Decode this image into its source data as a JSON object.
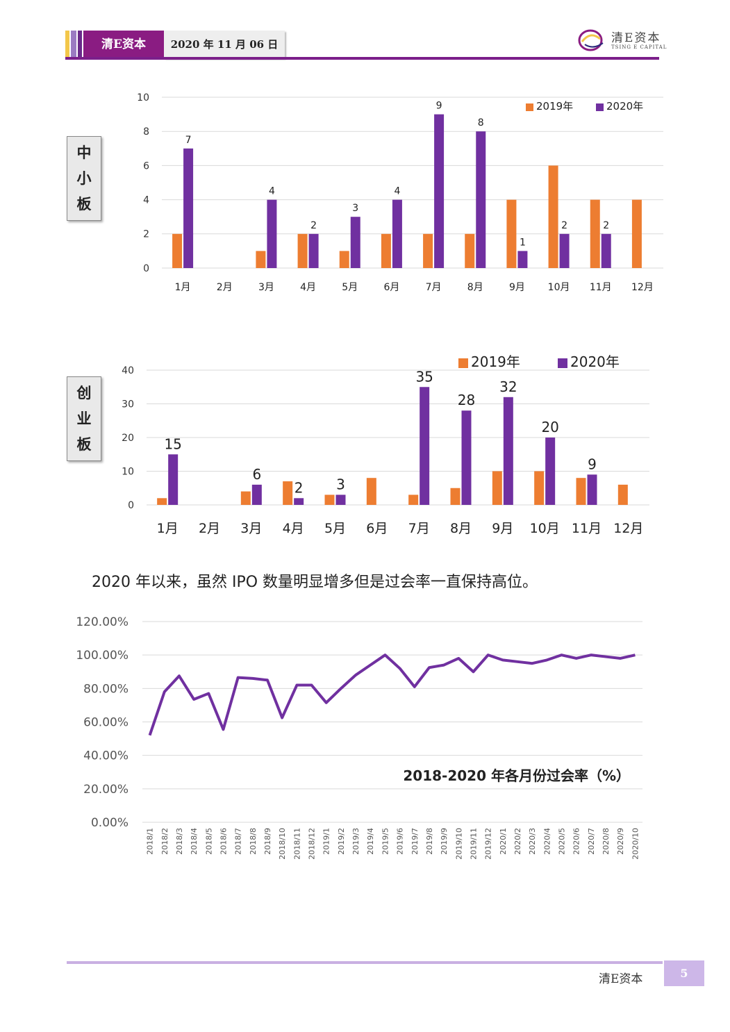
{
  "header": {
    "brand": "清E资本",
    "date": "2020 年 11 月 06 日",
    "logo_cn": "清E资本",
    "logo_en": "TSING E CAPITAL"
  },
  "colors": {
    "y2019": "#ed7d31",
    "y2020": "#7030a0",
    "line": "#7030a0",
    "brand": "#8a1c82"
  },
  "sections": [
    {
      "label_chars": [
        "中",
        "小",
        "板"
      ]
    },
    {
      "label_chars": [
        "创",
        "业",
        "板"
      ]
    }
  ],
  "paragraph": "2020 年以来，虽然 IPO 数量明显增多但是过会率一直保持高位。",
  "chart_data": [
    {
      "type": "bar",
      "categories": [
        "1月",
        "2月",
        "3月",
        "4月",
        "5月",
        "6月",
        "7月",
        "8月",
        "9月",
        "10月",
        "11月",
        "12月"
      ],
      "series": [
        {
          "name": "2019年",
          "values": [
            2,
            0,
            1,
            2,
            1,
            2,
            2,
            2,
            4,
            6,
            4,
            4
          ]
        },
        {
          "name": "2020年",
          "values": [
            7,
            0,
            4,
            2,
            3,
            4,
            9,
            8,
            1,
            2,
            2,
            0
          ],
          "labels": [
            "7",
            "",
            "4",
            "2",
            "3",
            "4",
            "9",
            "8",
            "1",
            "2",
            "2",
            ""
          ]
        }
      ],
      "ylim": [
        0,
        10
      ],
      "yticks": [
        "0",
        "2",
        "4",
        "6",
        "8",
        "10"
      ],
      "legend": "top-right",
      "grid": true
    },
    {
      "type": "bar",
      "categories": [
        "1月",
        "2月",
        "3月",
        "4月",
        "5月",
        "6月",
        "7月",
        "8月",
        "9月",
        "10月",
        "11月",
        "12月"
      ],
      "series": [
        {
          "name": "2019年",
          "values": [
            2,
            0,
            4,
            7,
            3,
            8,
            3,
            5,
            10,
            10,
            8,
            6
          ]
        },
        {
          "name": "2020年",
          "values": [
            15,
            0,
            6,
            2,
            3,
            0,
            35,
            28,
            32,
            20,
            9,
            0
          ],
          "labels": [
            "15",
            "",
            "6",
            "2",
            "3",
            "",
            "35",
            "28",
            "32",
            "20",
            "9",
            ""
          ]
        }
      ],
      "ylim": [
        0,
        40
      ],
      "yticks": [
        "0",
        "10",
        "20",
        "30",
        "40"
      ],
      "legend": "top-right",
      "grid": true
    },
    {
      "type": "line",
      "title": "2018-2020 年各月份过会率（%）",
      "x": [
        "2018/1",
        "2018/2",
        "2018/3",
        "2018/4",
        "2018/5",
        "2018/6",
        "2018/7",
        "2018/8",
        "2018/9",
        "2018/10",
        "2018/11",
        "2018/12",
        "2019/1",
        "2019/2",
        "2019/3",
        "2019/4",
        "2019/5",
        "2019/6",
        "2019/7",
        "2019/8",
        "2019/9",
        "2019/10",
        "2019/11",
        "2019/12",
        "2020/1",
        "2020/2",
        "2020/3",
        "2020/4",
        "2020/5",
        "2020/6",
        "2020/7",
        "2020/8",
        "2020/9",
        "2020/10"
      ],
      "values": [
        52,
        78,
        87.5,
        73.5,
        77,
        55.5,
        86.5,
        86,
        85,
        62.5,
        82,
        82,
        71.5,
        80,
        88,
        94,
        100,
        92,
        81,
        92.5,
        94,
        98,
        90,
        100,
        97,
        96,
        95,
        97,
        100,
        98,
        100,
        99,
        98,
        100
      ],
      "ylim": [
        0,
        120
      ],
      "yticks": [
        "0.00%",
        "20.00%",
        "40.00%",
        "60.00%",
        "80.00%",
        "100.00%",
        "120.00%"
      ],
      "grid": true
    }
  ],
  "footer": {
    "brand": "清E资本",
    "page": "5"
  }
}
